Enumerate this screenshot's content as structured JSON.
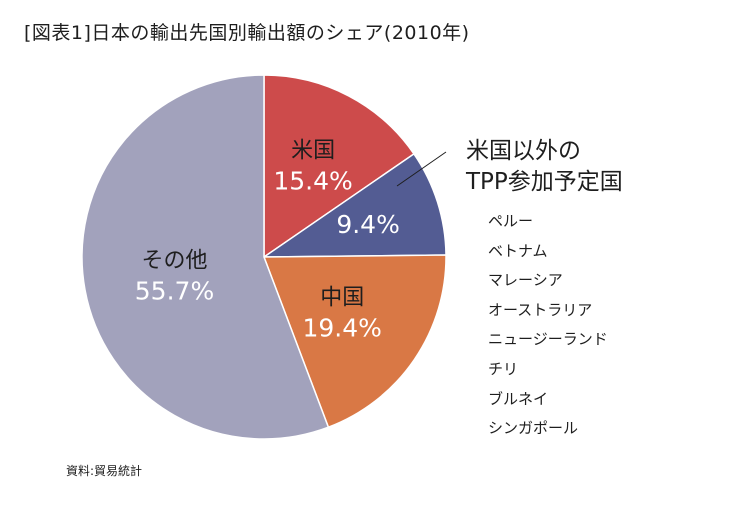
{
  "page": {
    "title": "[図表1]日本の輸出先国別輸出額のシェア(2010年)",
    "source": "資料:貿易統計"
  },
  "annotation": {
    "title_line1": "米国以外の",
    "title_line2": "TPP参加予定国",
    "countries": [
      "ペルー",
      "ベトナム",
      "マレーシア",
      "オーストラリア",
      "ニュージーランド",
      "チリ",
      "ブルネイ",
      "シンガポール"
    ]
  },
  "chart_data": {
    "type": "pie",
    "title": "[図表1]日本の輸出先国別輸出額のシェア(2010年)",
    "slices": [
      {
        "label": "米国",
        "value": 15.4,
        "display": "15.4%",
        "color": "#cd4b4b"
      },
      {
        "label": "",
        "value": 9.4,
        "display": "9.4%",
        "color": "#535c93"
      },
      {
        "label": "中国",
        "value": 19.4,
        "display": "19.4%",
        "color": "#d97845"
      },
      {
        "label": "その他",
        "value": 55.7,
        "display": "55.7%",
        "color": "#a2a2bc"
      }
    ]
  }
}
